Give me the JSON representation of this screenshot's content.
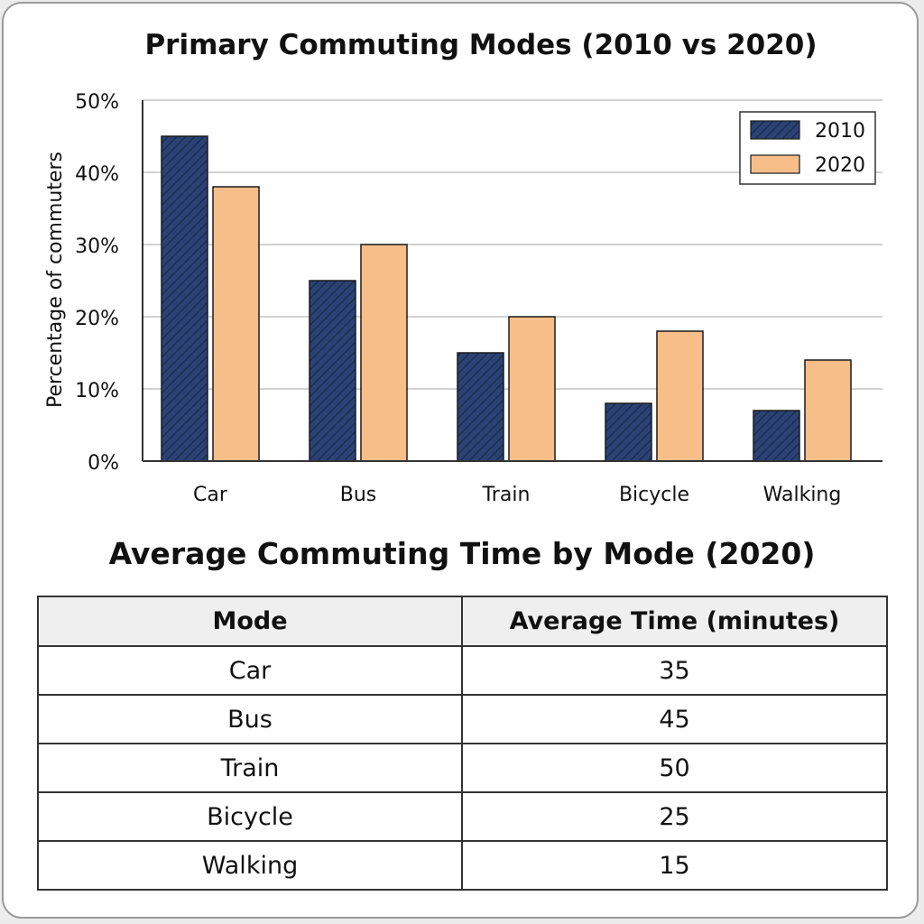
{
  "chart_data": {
    "type": "bar",
    "title": "Primary Commuting Modes (2010 vs 2020)",
    "xlabel": "",
    "ylabel": "Percentage of commuters",
    "categories": [
      "Car",
      "Bus",
      "Train",
      "Bicycle",
      "Walking"
    ],
    "series": [
      {
        "name": "2010",
        "values": [
          45,
          25,
          15,
          8,
          7
        ],
        "color": "#2b4374",
        "pattern": "diagonal-hatch"
      },
      {
        "name": "2020",
        "values": [
          38,
          30,
          20,
          18,
          14
        ],
        "color": "#f8be8a"
      }
    ],
    "ylim": [
      0,
      50
    ],
    "yticks": [
      0,
      10,
      20,
      30,
      40,
      50
    ],
    "ytick_labels": [
      "0%",
      "10%",
      "20%",
      "30%",
      "40%",
      "50%"
    ],
    "grid": true,
    "legend_position": "top-right"
  },
  "table": {
    "title": "Average Commuting Time by Mode (2020)",
    "headers": [
      "Mode",
      "Average Time (minutes)"
    ],
    "rows": [
      [
        "Car",
        "35"
      ],
      [
        "Bus",
        "45"
      ],
      [
        "Train",
        "50"
      ],
      [
        "Bicycle",
        "25"
      ],
      [
        "Walking",
        "15"
      ]
    ]
  }
}
